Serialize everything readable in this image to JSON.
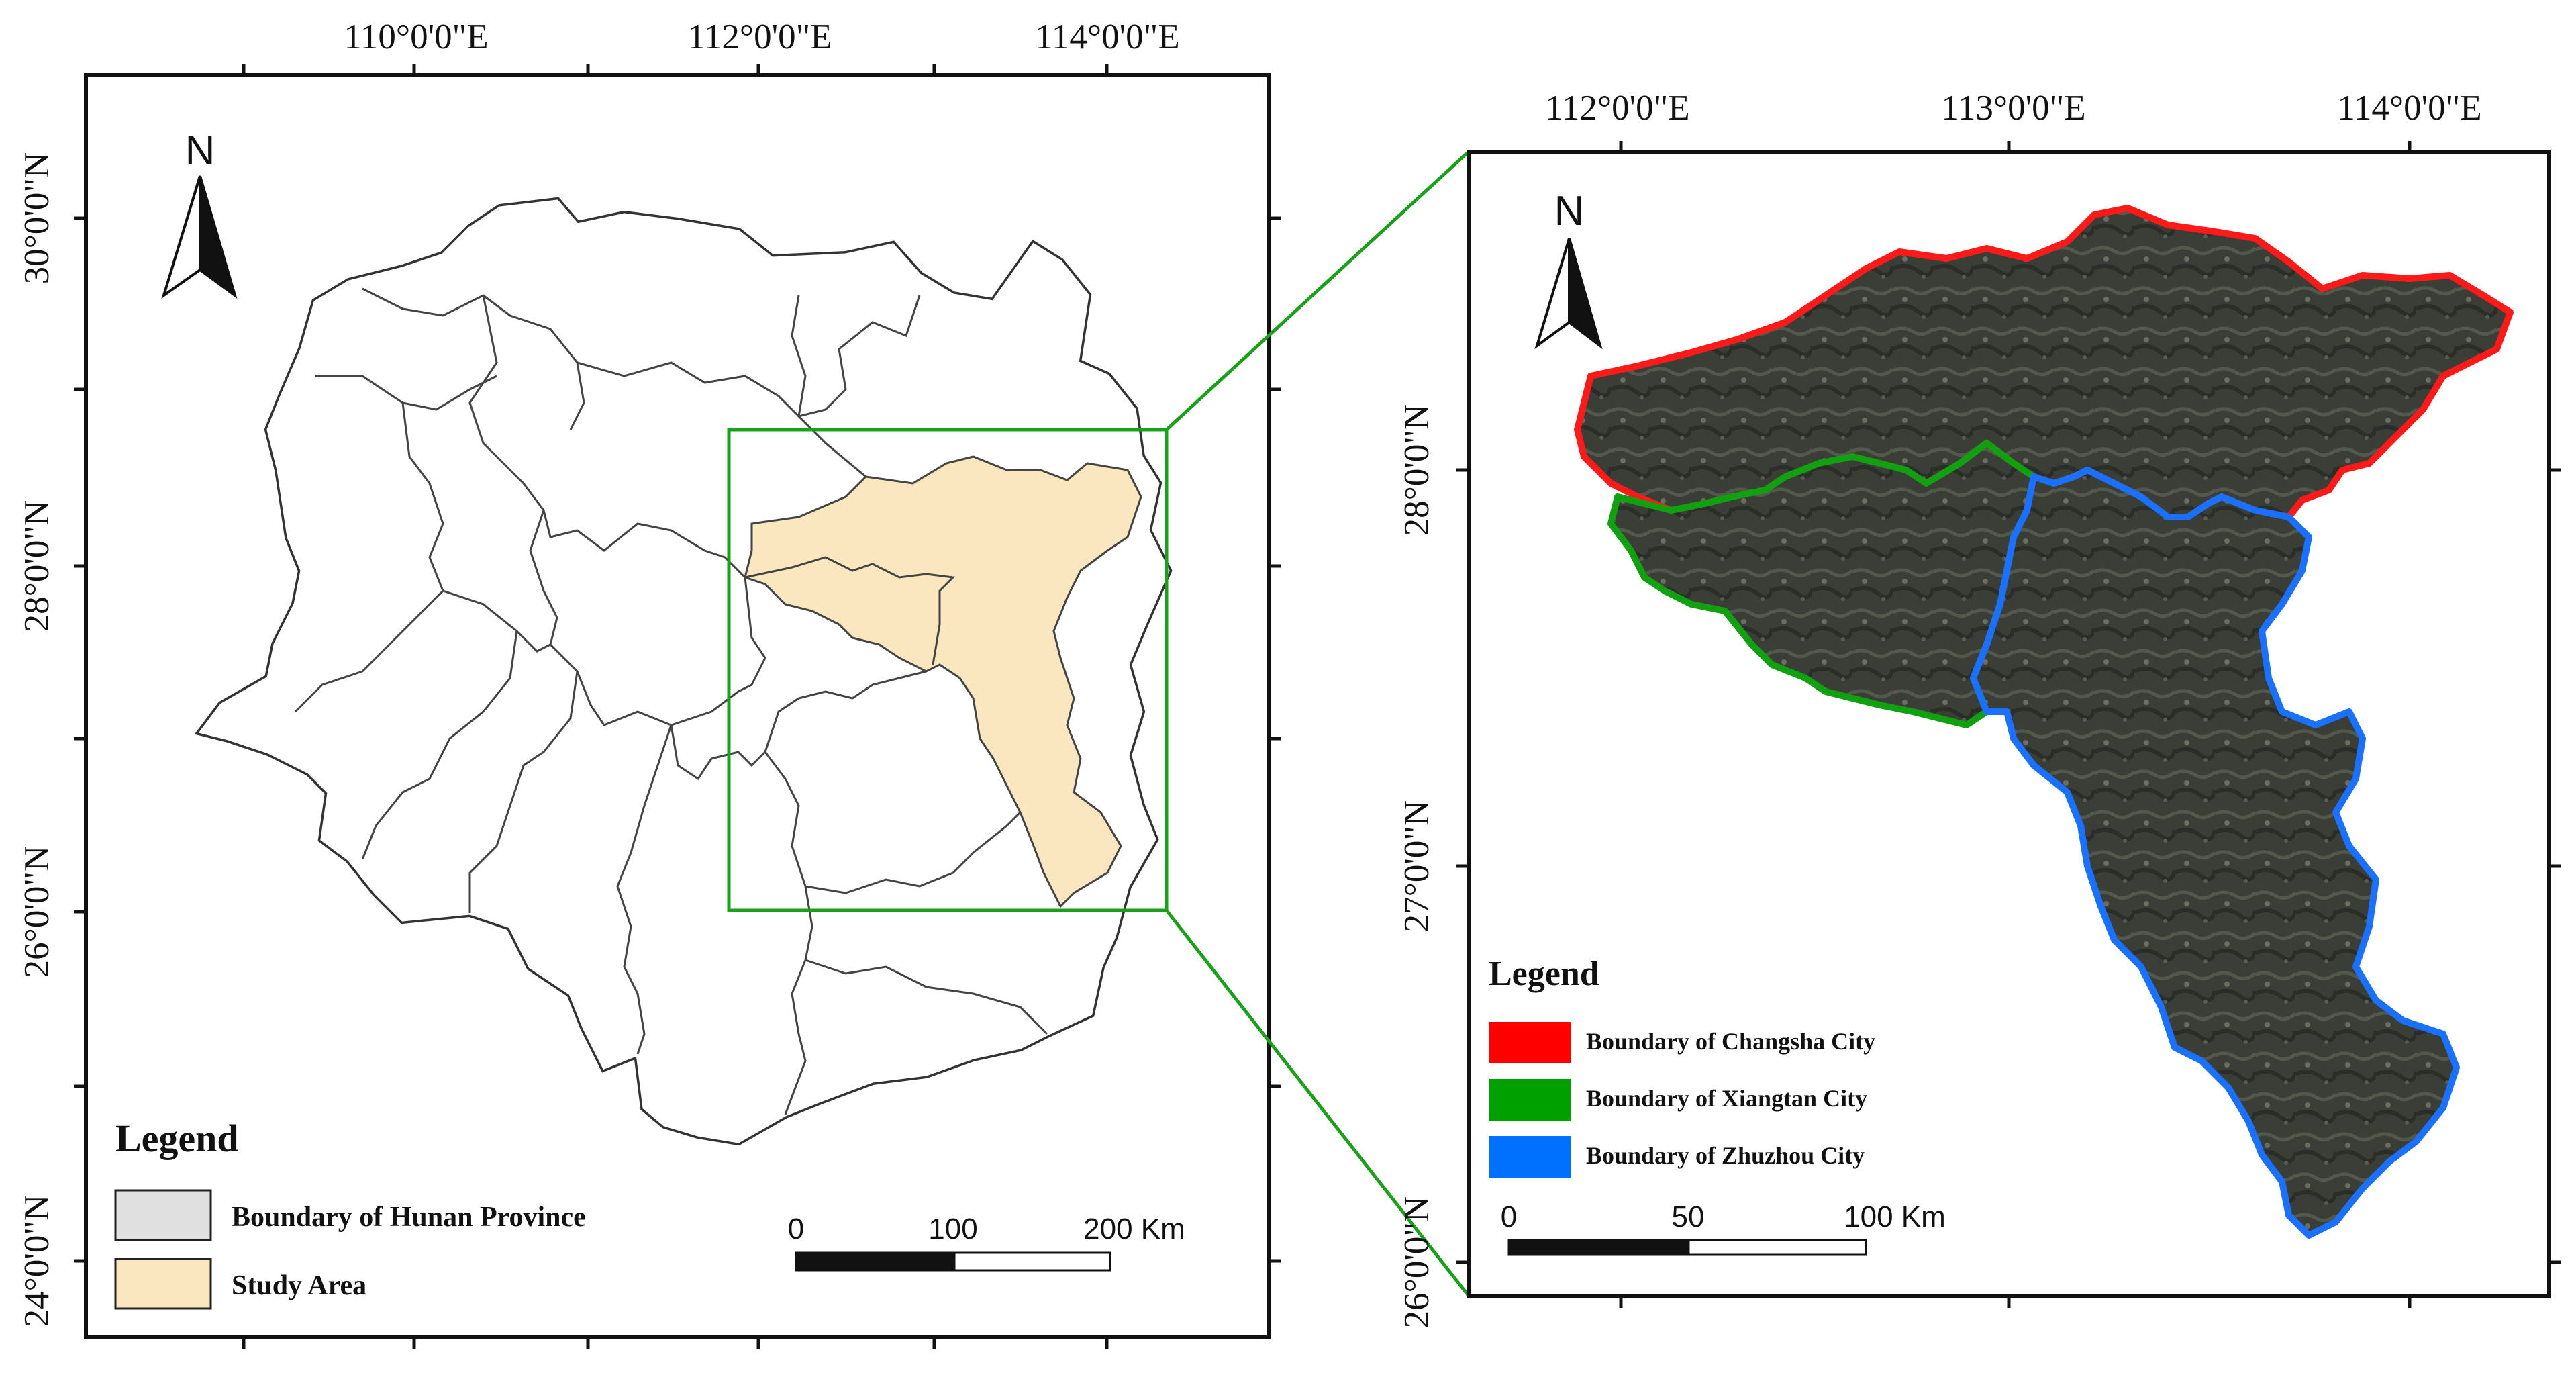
{
  "left_map": {
    "top_lon_labels": [
      "110°0'0\"E",
      "112°0'0\"E",
      "114°0'0\"E"
    ],
    "left_lat_labels": [
      "30°0'0\"N",
      "28°0'0\"N",
      "26°0'0\"N",
      "24°0'0\"N"
    ],
    "north_label": "N",
    "legend": {
      "title": "Legend",
      "items": [
        {
          "label": "Boundary of Hunan Province",
          "color": "#e0e0e0"
        },
        {
          "label": "Study Area",
          "color": "#fae7bf"
        }
      ]
    },
    "scale": {
      "labels": [
        "0",
        "100",
        "200 Km"
      ]
    }
  },
  "right_map": {
    "top_lon_labels": [
      "112°0'0\"E",
      "113°0'0\"E",
      "114°0'0\"E"
    ],
    "left_lat_labels": [
      "28°0'0\"N",
      "27°0'0\"N",
      "26°0'0\"N"
    ],
    "north_label": "N",
    "legend": {
      "title": "Legend",
      "items": [
        {
          "label": "Boundary of Changsha City",
          "color": "#ff0000"
        },
        {
          "label": "Boundary of Xiangtan City",
          "color": "#00a000"
        },
        {
          "label": "Boundary of Zhuzhou City",
          "color": "#0070ff"
        }
      ]
    },
    "scale": {
      "labels": [
        "0",
        "50",
        "100 Km"
      ]
    }
  },
  "colors": {
    "study_area": "#fae7bf",
    "extent_box": "#1aa01a",
    "changsha": "#ff1a1a",
    "xiangtan": "#10a010",
    "zhuzhou": "#1a70ff",
    "satellite": "#3a3d36"
  }
}
